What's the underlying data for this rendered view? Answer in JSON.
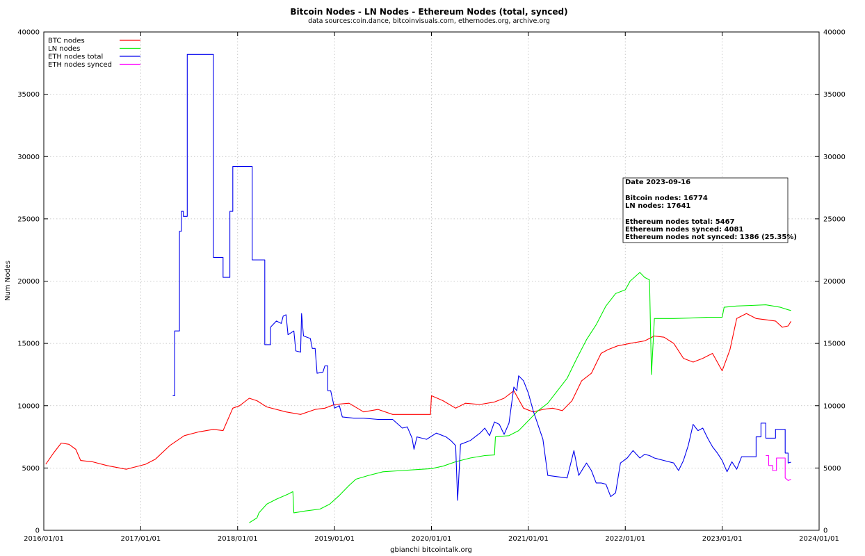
{
  "chart_data": {
    "type": "line",
    "title": "Bitcoin Nodes - LN Nodes - Ethereum Nodes (total, synced)",
    "subtitle": "data sources:coin.dance, bitcoinvisuals.com, ethernodes.org, archive.org",
    "xlabel": "gbianchi bitcointalk.org",
    "ylabel": "Num Nodes",
    "ylim": [
      0,
      40000
    ],
    "xlim": [
      2016.0,
      2024.0
    ],
    "x_ticks": [
      "2016/01/01",
      "2017/01/01",
      "2018/01/01",
      "2019/01/01",
      "2020/01/01",
      "2021/01/01",
      "2022/01/01",
      "2023/01/01",
      "2024/01/01"
    ],
    "y_ticks": [
      0,
      5000,
      10000,
      15000,
      20000,
      25000,
      30000,
      35000,
      40000
    ],
    "grid": true,
    "legend_position": "top-left",
    "series": [
      {
        "name": "BTC nodes",
        "color": "#ff0000",
        "points": [
          [
            2016.02,
            5300
          ],
          [
            2016.1,
            6200
          ],
          [
            2016.18,
            7000
          ],
          [
            2016.26,
            6900
          ],
          [
            2016.33,
            6500
          ],
          [
            2016.38,
            5600
          ],
          [
            2016.5,
            5500
          ],
          [
            2016.65,
            5200
          ],
          [
            2016.85,
            4900
          ],
          [
            2016.95,
            5100
          ],
          [
            2017.05,
            5300
          ],
          [
            2017.15,
            5700
          ],
          [
            2017.3,
            6800
          ],
          [
            2017.45,
            7600
          ],
          [
            2017.6,
            7900
          ],
          [
            2017.75,
            8100
          ],
          [
            2017.85,
            8000
          ],
          [
            2017.95,
            9800
          ],
          [
            2018.02,
            10000
          ],
          [
            2018.12,
            10600
          ],
          [
            2018.2,
            10400
          ],
          [
            2018.3,
            9900
          ],
          [
            2018.5,
            9500
          ],
          [
            2018.65,
            9300
          ],
          [
            2018.8,
            9700
          ],
          [
            2018.9,
            9800
          ],
          [
            2019.0,
            10100
          ],
          [
            2019.15,
            10200
          ],
          [
            2019.3,
            9500
          ],
          [
            2019.45,
            9700
          ],
          [
            2019.6,
            9300
          ],
          [
            2019.75,
            9300
          ],
          [
            2019.9,
            9300
          ],
          [
            2019.99,
            9300
          ],
          [
            2020.0,
            10800
          ],
          [
            2020.12,
            10400
          ],
          [
            2020.25,
            9800
          ],
          [
            2020.35,
            10200
          ],
          [
            2020.5,
            10100
          ],
          [
            2020.65,
            10300
          ],
          [
            2020.75,
            10600
          ],
          [
            2020.85,
            11200
          ],
          [
            2020.95,
            9800
          ],
          [
            2021.05,
            9500
          ],
          [
            2021.15,
            9700
          ],
          [
            2021.25,
            9800
          ],
          [
            2021.35,
            9600
          ],
          [
            2021.45,
            10400
          ],
          [
            2021.55,
            12000
          ],
          [
            2021.65,
            12600
          ],
          [
            2021.75,
            14200
          ],
          [
            2021.82,
            14500
          ],
          [
            2021.92,
            14800
          ],
          [
            2022.05,
            15000
          ],
          [
            2022.2,
            15200
          ],
          [
            2022.3,
            15600
          ],
          [
            2022.4,
            15500
          ],
          [
            2022.5,
            15000
          ],
          [
            2022.6,
            13800
          ],
          [
            2022.7,
            13500
          ],
          [
            2022.8,
            13800
          ],
          [
            2022.9,
            14200
          ],
          [
            2023.0,
            12800
          ],
          [
            2023.08,
            14500
          ],
          [
            2023.15,
            17000
          ],
          [
            2023.25,
            17400
          ],
          [
            2023.35,
            17000
          ],
          [
            2023.45,
            16900
          ],
          [
            2023.55,
            16800
          ],
          [
            2023.62,
            16300
          ],
          [
            2023.68,
            16400
          ],
          [
            2023.71,
            16774
          ]
        ]
      },
      {
        "name": "LN nodes",
        "color": "#00ee00",
        "points": [
          [
            2018.12,
            600
          ],
          [
            2018.2,
            1000
          ],
          [
            2018.22,
            1400
          ],
          [
            2018.3,
            2100
          ],
          [
            2018.4,
            2500
          ],
          [
            2018.52,
            2900
          ],
          [
            2018.57,
            3100
          ],
          [
            2018.58,
            1400
          ],
          [
            2018.7,
            1550
          ],
          [
            2018.85,
            1700
          ],
          [
            2018.95,
            2100
          ],
          [
            2019.05,
            2800
          ],
          [
            2019.15,
            3600
          ],
          [
            2019.22,
            4100
          ],
          [
            2019.35,
            4400
          ],
          [
            2019.5,
            4700
          ],
          [
            2019.7,
            4800
          ],
          [
            2019.9,
            4900
          ],
          [
            2020.0,
            4950
          ],
          [
            2020.12,
            5150
          ],
          [
            2020.25,
            5500
          ],
          [
            2020.4,
            5800
          ],
          [
            2020.55,
            6000
          ],
          [
            2020.65,
            6050
          ],
          [
            2020.66,
            7500
          ],
          [
            2020.8,
            7600
          ],
          [
            2020.9,
            8000
          ],
          [
            2021.0,
            8800
          ],
          [
            2021.1,
            9600
          ],
          [
            2021.2,
            10200
          ],
          [
            2021.3,
            11200
          ],
          [
            2021.4,
            12200
          ],
          [
            2021.5,
            13800
          ],
          [
            2021.6,
            15300
          ],
          [
            2021.7,
            16500
          ],
          [
            2021.8,
            18000
          ],
          [
            2021.9,
            19000
          ],
          [
            2022.0,
            19300
          ],
          [
            2022.05,
            20000
          ],
          [
            2022.15,
            20700
          ],
          [
            2022.2,
            20300
          ],
          [
            2022.25,
            20100
          ],
          [
            2022.27,
            12500
          ],
          [
            2022.3,
            17000
          ],
          [
            2022.5,
            17000
          ],
          [
            2022.7,
            17050
          ],
          [
            2022.85,
            17100
          ],
          [
            2023.0,
            17100
          ],
          [
            2023.02,
            17900
          ],
          [
            2023.15,
            18000
          ],
          [
            2023.3,
            18050
          ],
          [
            2023.45,
            18100
          ],
          [
            2023.6,
            17900
          ],
          [
            2023.68,
            17700
          ],
          [
            2023.71,
            17641
          ]
        ]
      },
      {
        "name": "ETH nodes total",
        "color": "#0000ee",
        "points": [
          [
            2017.33,
            10800
          ],
          [
            2017.35,
            10800
          ],
          [
            2017.35,
            16000
          ],
          [
            2017.4,
            16000
          ],
          [
            2017.4,
            24000
          ],
          [
            2017.42,
            24000
          ],
          [
            2017.42,
            25600
          ],
          [
            2017.44,
            25600
          ],
          [
            2017.44,
            25200
          ],
          [
            2017.48,
            25200
          ],
          [
            2017.48,
            38200
          ],
          [
            2017.75,
            38200
          ],
          [
            2017.75,
            21900
          ],
          [
            2017.85,
            21900
          ],
          [
            2017.85,
            20300
          ],
          [
            2017.92,
            20300
          ],
          [
            2017.92,
            25600
          ],
          [
            2017.95,
            25600
          ],
          [
            2017.95,
            29200
          ],
          [
            2018.15,
            29200
          ],
          [
            2018.15,
            21700
          ],
          [
            2018.28,
            21700
          ],
          [
            2018.28,
            14900
          ],
          [
            2018.34,
            14900
          ],
          [
            2018.34,
            16300
          ],
          [
            2018.4,
            16800
          ],
          [
            2018.45,
            16600
          ],
          [
            2018.47,
            17200
          ],
          [
            2018.5,
            17300
          ],
          [
            2018.52,
            15700
          ],
          [
            2018.58,
            16000
          ],
          [
            2018.6,
            14400
          ],
          [
            2018.65,
            14300
          ],
          [
            2018.66,
            17400
          ],
          [
            2018.68,
            15600
          ],
          [
            2018.75,
            15400
          ],
          [
            2018.77,
            14600
          ],
          [
            2018.8,
            14600
          ],
          [
            2018.82,
            12600
          ],
          [
            2018.88,
            12700
          ],
          [
            2018.9,
            13200
          ],
          [
            2018.93,
            13200
          ],
          [
            2018.93,
            11200
          ],
          [
            2018.96,
            11200
          ],
          [
            2018.98,
            10500
          ],
          [
            2019.0,
            9800
          ],
          [
            2019.05,
            10000
          ],
          [
            2019.08,
            9100
          ],
          [
            2019.2,
            9000
          ],
          [
            2019.3,
            9000
          ],
          [
            2019.45,
            8900
          ],
          [
            2019.6,
            8900
          ],
          [
            2019.7,
            8200
          ],
          [
            2019.75,
            8300
          ],
          [
            2019.8,
            7400
          ],
          [
            2019.82,
            6500
          ],
          [
            2019.85,
            7500
          ],
          [
            2019.95,
            7300
          ],
          [
            2020.05,
            7800
          ],
          [
            2020.15,
            7500
          ],
          [
            2020.2,
            7200
          ],
          [
            2020.25,
            6800
          ],
          [
            2020.27,
            2400
          ],
          [
            2020.3,
            6900
          ],
          [
            2020.4,
            7200
          ],
          [
            2020.5,
            7800
          ],
          [
            2020.55,
            8200
          ],
          [
            2020.6,
            7600
          ],
          [
            2020.65,
            8700
          ],
          [
            2020.7,
            8500
          ],
          [
            2020.75,
            7700
          ],
          [
            2020.8,
            8600
          ],
          [
            2020.85,
            11500
          ],
          [
            2020.88,
            11200
          ],
          [
            2020.9,
            12400
          ],
          [
            2020.95,
            12000
          ],
          [
            2021.0,
            11000
          ],
          [
            2021.05,
            9600
          ],
          [
            2021.15,
            7300
          ],
          [
            2021.2,
            4400
          ],
          [
            2021.3,
            4300
          ],
          [
            2021.4,
            4200
          ],
          [
            2021.47,
            6400
          ],
          [
            2021.52,
            4400
          ],
          [
            2021.6,
            5400
          ],
          [
            2021.65,
            4800
          ],
          [
            2021.7,
            3800
          ],
          [
            2021.75,
            3800
          ],
          [
            2021.8,
            3700
          ],
          [
            2021.85,
            2700
          ],
          [
            2021.9,
            3000
          ],
          [
            2021.95,
            5400
          ],
          [
            2022.02,
            5800
          ],
          [
            2022.08,
            6400
          ],
          [
            2022.15,
            5800
          ],
          [
            2022.2,
            6100
          ],
          [
            2022.25,
            6000
          ],
          [
            2022.3,
            5800
          ],
          [
            2022.35,
            5700
          ],
          [
            2022.4,
            5600
          ],
          [
            2022.5,
            5400
          ],
          [
            2022.55,
            4800
          ],
          [
            2022.6,
            5600
          ],
          [
            2022.65,
            6800
          ],
          [
            2022.7,
            8500
          ],
          [
            2022.75,
            8000
          ],
          [
            2022.8,
            8200
          ],
          [
            2022.85,
            7400
          ],
          [
            2022.9,
            6700
          ],
          [
            2022.95,
            6200
          ],
          [
            2023.0,
            5600
          ],
          [
            2023.05,
            4700
          ],
          [
            2023.1,
            5500
          ],
          [
            2023.15,
            4900
          ],
          [
            2023.2,
            5900
          ],
          [
            2023.35,
            5900
          ],
          [
            2023.35,
            7500
          ],
          [
            2023.4,
            7500
          ],
          [
            2023.4,
            8600
          ],
          [
            2023.45,
            8600
          ],
          [
            2023.45,
            7400
          ],
          [
            2023.55,
            7400
          ],
          [
            2023.55,
            8100
          ],
          [
            2023.65,
            8100
          ],
          [
            2023.65,
            6200
          ],
          [
            2023.68,
            6200
          ],
          [
            2023.68,
            5400
          ],
          [
            2023.71,
            5467
          ]
        ]
      },
      {
        "name": "ETH nodes synced",
        "color": "#ff00ff",
        "points": [
          [
            2023.45,
            6000
          ],
          [
            2023.48,
            6000
          ],
          [
            2023.48,
            5200
          ],
          [
            2023.52,
            5200
          ],
          [
            2023.52,
            4800
          ],
          [
            2023.56,
            4800
          ],
          [
            2023.56,
            5800
          ],
          [
            2023.65,
            5800
          ],
          [
            2023.65,
            4200
          ],
          [
            2023.68,
            4000
          ],
          [
            2023.71,
            4081
          ]
        ]
      }
    ]
  },
  "info_box": {
    "date": "Date 2023-09-16",
    "bitcoin_nodes": "Bitcoin nodes: 16774",
    "ln_nodes": "LN nodes: 17641",
    "eth_total": "Ethereum nodes total: 5467",
    "eth_synced": "Ethereum nodes synced: 4081",
    "eth_not_synced": "Ethereum nodes not synced: 1386 (25.35%)"
  }
}
